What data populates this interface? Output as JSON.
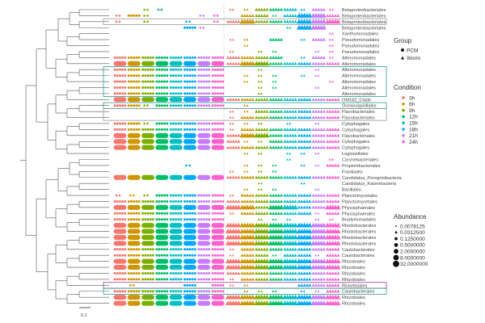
{
  "chart_data": {
    "type": "scatter",
    "description_levels": "0 absent, 1 sparse, 2 medium, 3 large",
    "conditions": [
      "3h",
      "6h",
      "9h",
      "12h",
      "15h",
      "18h",
      "21h",
      "24h"
    ],
    "condition_colors": [
      "#F8766D",
      "#CD9600",
      "#7CAE00",
      "#00BE67",
      "#00BFC4",
      "#00A9FF",
      "#C77CFF",
      "#FF61CC"
    ],
    "groups": [
      {
        "name": "PCM",
        "shape": "circle"
      },
      {
        "name": "Worm",
        "shape": "triangle"
      }
    ],
    "abundance_levels": [
      "0.0078125",
      "0.0312500",
      "0.1250000",
      "0.5000000",
      "2.0000000",
      "8.0000000",
      "32.0000000"
    ],
    "scale_bar": "0.1",
    "rows": [
      {
        "order": "Betaproteobacteriales",
        "pcm": "00110000",
        "worm": "11222121"
      },
      {
        "order": "Betaproteobacteriales",
        "pcm": "12100011",
        "worm": "02212332"
      },
      {
        "order": "Betaproteobacteriales",
        "pcm": "10100101",
        "worm": "23222333",
        "box": "#999999"
      },
      {
        "order": "Betaproteobacteriales",
        "pcm": "00000210",
        "worm": "00001330"
      },
      {
        "order": "Xanthomonadales",
        "pcm": "00000000",
        "worm": "00000001"
      },
      {
        "order": "Pseudomonadales",
        "pcm": "00000000",
        "worm": "11020121"
      },
      {
        "order": "Pseudomonadales",
        "pcm": "00000000",
        "worm": "01000001"
      },
      {
        "order": "Pseudomonadales",
        "pcm": "00000000",
        "worm": "10110011"
      },
      {
        "order": "Alteromonadales",
        "pcm": "22222222",
        "worm": "22220121"
      },
      {
        "order": "Alteromonadales",
        "pcm": "33333333",
        "worm": "23322222"
      },
      {
        "order": "Alteromonadales",
        "pcm": "22222222",
        "worm": "00100010"
      },
      {
        "order": "Alteromonadales",
        "pcm": "22222222",
        "worm": "01110110"
      },
      {
        "order": "Alteromonadales",
        "pcm": "22222222",
        "worm": "01110001"
      },
      {
        "order": "Alteromonadales",
        "pcm": "22222222",
        "worm": "00110010"
      },
      {
        "order": "Alteromonadales",
        "pcm": "22222222",
        "worm": "00100000"
      },
      {
        "order": "OM182_Clade",
        "pcm": "33333333",
        "worm": "22222222"
      },
      {
        "order": "Oceanospirillales",
        "pcm": "22122222",
        "worm": "01000000",
        "box": "#2a9d8f"
      },
      {
        "order": "Flavobacteriales",
        "pcm": "00000000",
        "worm": "11222222"
      },
      {
        "order": "Flavobacteriales",
        "pcm": "00000000",
        "worm": "12222222"
      },
      {
        "order": "Cytophagales",
        "pcm": "22122222",
        "worm": "11101010"
      },
      {
        "order": "Cytophagales",
        "pcm": "22222222",
        "worm": "12222222"
      },
      {
        "order": "Flavobacteriales",
        "pcm": "33333333",
        "worm": "23322222"
      },
      {
        "order": "Cytophagales",
        "pcm": "33333333",
        "worm": "21122222"
      },
      {
        "order": "Cytophagales",
        "pcm": "33333333",
        "worm": "22222222"
      },
      {
        "order": "Legionellales",
        "pcm": "00000000",
        "worm": "01101110"
      },
      {
        "order": "Corynebacteriales",
        "pcm": "00000000",
        "worm": "00001001"
      },
      {
        "order": "Propionibacteriales",
        "pcm": "00000100",
        "worm": "01110112"
      },
      {
        "order": "Frankiales",
        "pcm": "00000000",
        "worm": "11110000"
      },
      {
        "order": "Candidatus_Peregrinibacteria",
        "pcm": "33333333",
        "worm": "22222222"
      },
      {
        "order": "Candidatus_Kaiserbacteria",
        "pcm": "00000000",
        "worm": "00100100"
      },
      {
        "order": "Bacillales",
        "pcm": "00000000",
        "worm": "01110010"
      },
      {
        "order": "Planctomycetales",
        "pcm": "11122222",
        "worm": "12222222"
      },
      {
        "order": "Planctomycetales",
        "pcm": "22222222",
        "worm": "22222222"
      },
      {
        "order": "Phycisphaerales",
        "pcm": "33333333",
        "worm": "33233223"
      },
      {
        "order": "Phycisphaerales",
        "pcm": "22222222",
        "worm": "12222212"
      },
      {
        "order": "Bradymonadales",
        "pcm": "22222222",
        "worm": "00111011"
      },
      {
        "order": "Rhodobacterales",
        "pcm": "33333333",
        "worm": "33333333"
      },
      {
        "order": "Rhodobacterales",
        "pcm": "33333333",
        "worm": "33333333"
      },
      {
        "order": "Rhodobacterales",
        "pcm": "33333333",
        "worm": "33333333"
      },
      {
        "order": "Rhodobacterales",
        "pcm": "33333333",
        "worm": "33333333"
      },
      {
        "order": "Caulobacterales",
        "pcm": "22222222",
        "worm": "12222222"
      },
      {
        "order": "Caulobacterales",
        "pcm": "22222222",
        "worm": "12212212"
      },
      {
        "order": "Rhizobiales",
        "pcm": "33333333",
        "worm": "33333333"
      },
      {
        "order": "Rhizobiales",
        "pcm": "33333333",
        "worm": "33333333"
      },
      {
        "order": "Rhizobiales",
        "pcm": "22222222",
        "worm": "22222222"
      },
      {
        "order": "Rhizobiales",
        "pcm": "22222222",
        "worm": "12222222"
      },
      {
        "order": "Rickettsiales",
        "pcm": "01000202",
        "worm": "11000222",
        "box": "#9b3f9b"
      },
      {
        "order": "Caulobacterales",
        "pcm": "22222222",
        "worm": "01110112",
        "box": "#2a9d8f"
      },
      {
        "order": "Rhizobiales",
        "pcm": "33333333",
        "worm": "33333333"
      },
      {
        "order": "Rhizobiales",
        "pcm": "33333333",
        "worm": "33333333"
      }
    ],
    "multi_boxes": [
      {
        "from": 11,
        "to": 15,
        "color": "#2a9d8f"
      },
      {
        "from": 18,
        "to": 19,
        "color": "#999999"
      }
    ]
  },
  "legend": {
    "group_title": "Group",
    "condition_title": "Condition",
    "abundance_title": "Abundance"
  }
}
